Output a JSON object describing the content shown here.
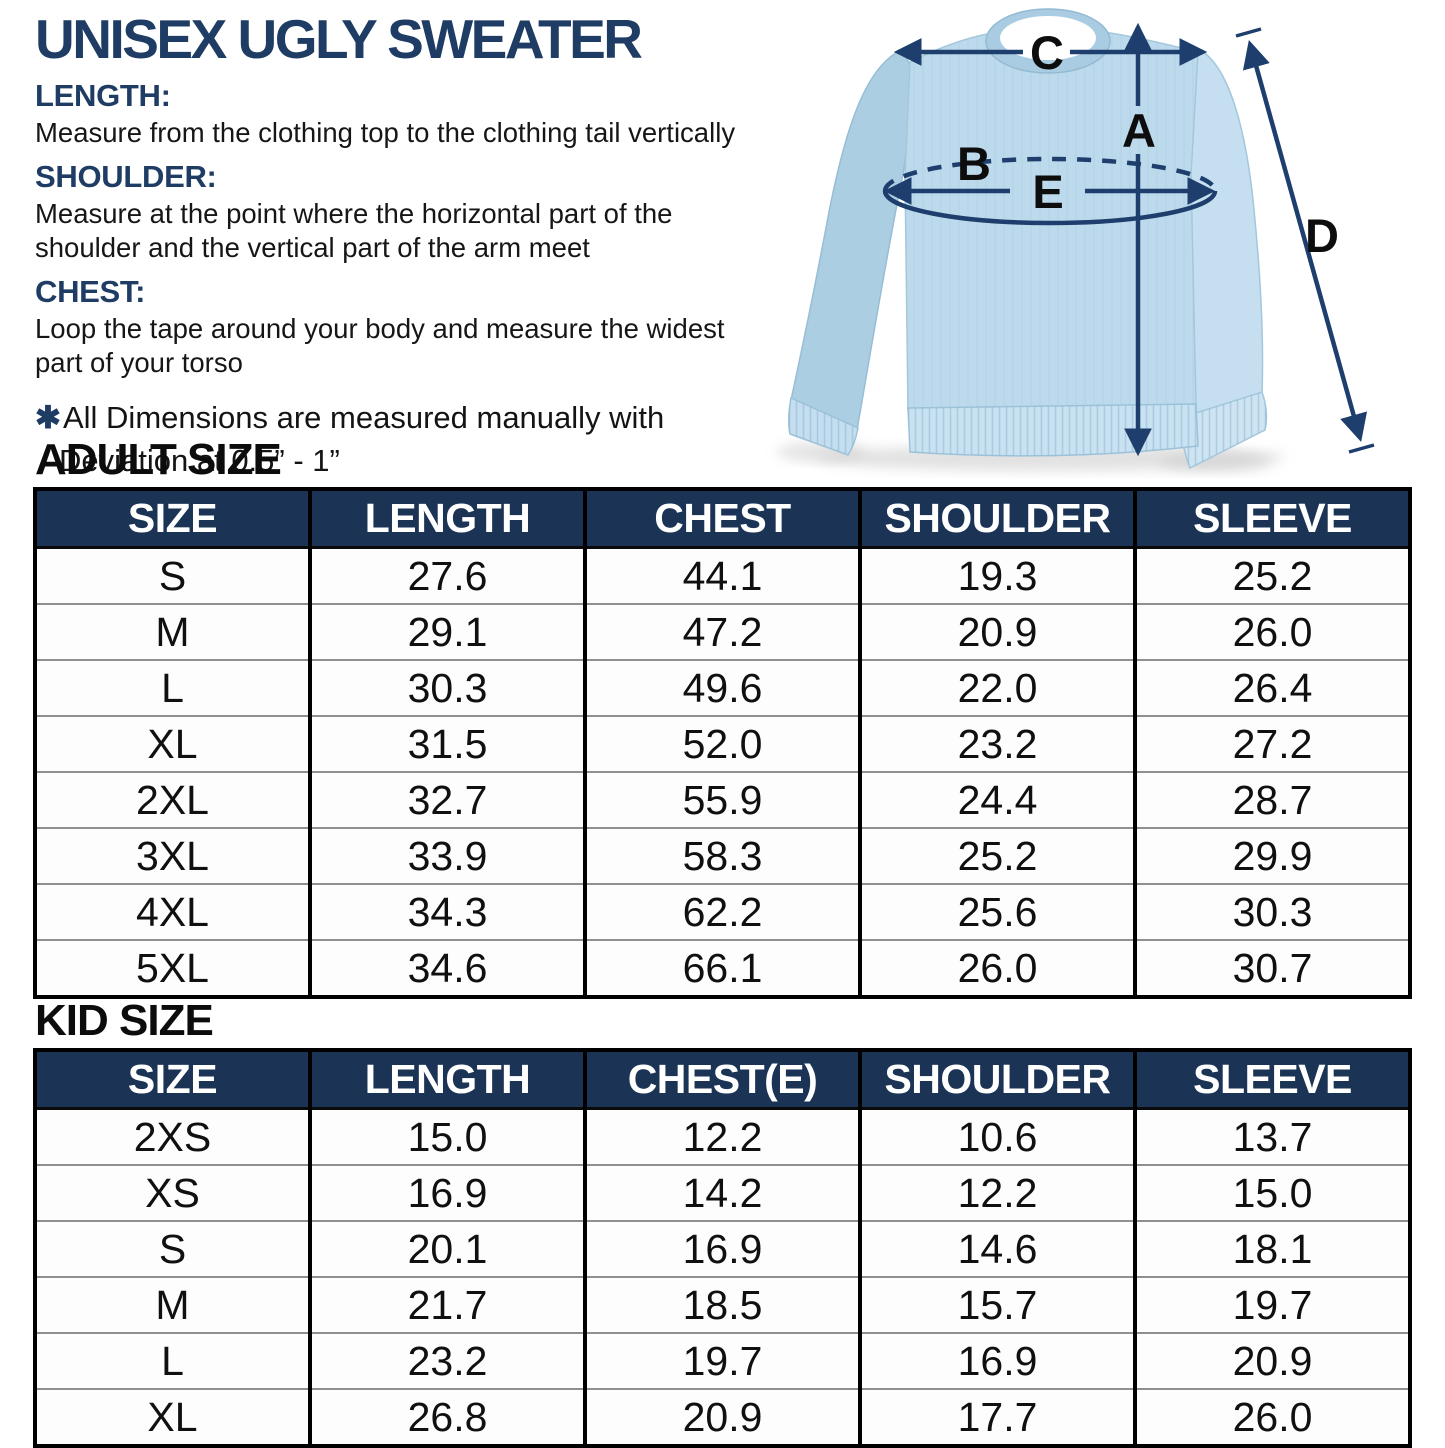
{
  "colors": {
    "navy_heading": "#1e3c64",
    "table_header_bg": "#1b3355",
    "table_header_text": "#ffffff",
    "body_text": "#161616",
    "sweater_blue": "#bddaec",
    "arrow_navy": "#1e3f6e"
  },
  "title": "UNISEX UGLY SWEATER",
  "measurement_guide": [
    {
      "label": "LENGTH:",
      "text": "Measure from the clothing top to the clothing tail vertically"
    },
    {
      "label": "SHOULDER:",
      "text": "Measure at the point where the horizontal part of the\nshoulder and the vertical part of the arm meet"
    },
    {
      "label": "CHEST:",
      "text": "Loop the tape around your body and measure the widest\npart of your torso"
    }
  ],
  "note": {
    "bullet": "✱",
    "line1": "All Dimensions are measured manually with",
    "line2": "Deviation at 0.5” - 1”"
  },
  "diagram": {
    "labels": {
      "a": "A",
      "b": "B",
      "c": "C",
      "d": "D",
      "e": "E"
    }
  },
  "adult": {
    "heading": "ADULT SIZE",
    "columns": [
      "SIZE",
      "LENGTH",
      "CHEST",
      "SHOULDER",
      "SLEEVE"
    ],
    "rows": [
      [
        "S",
        "27.6",
        "44.1",
        "19.3",
        "25.2"
      ],
      [
        "M",
        "29.1",
        "47.2",
        "20.9",
        "26.0"
      ],
      [
        "L",
        "30.3",
        "49.6",
        "22.0",
        "26.4"
      ],
      [
        "XL",
        "31.5",
        "52.0",
        "23.2",
        "27.2"
      ],
      [
        "2XL",
        "32.7",
        "55.9",
        "24.4",
        "28.7"
      ],
      [
        "3XL",
        "33.9",
        "58.3",
        "25.2",
        "29.9"
      ],
      [
        "4XL",
        "34.3",
        "62.2",
        "25.6",
        "30.3"
      ],
      [
        "5XL",
        "34.6",
        "66.1",
        "26.0",
        "30.7"
      ]
    ]
  },
  "kid": {
    "heading": "KID SIZE",
    "columns": [
      "SIZE",
      "LENGTH",
      "CHEST(E)",
      "SHOULDER",
      "SLEEVE"
    ],
    "rows": [
      [
        "2XS",
        "15.0",
        "12.2",
        "10.6",
        "13.7"
      ],
      [
        "XS",
        "16.9",
        "14.2",
        "12.2",
        "15.0"
      ],
      [
        "S",
        "20.1",
        "16.9",
        "14.6",
        "18.1"
      ],
      [
        "M",
        "21.7",
        "18.5",
        "15.7",
        "19.7"
      ],
      [
        "L",
        "23.2",
        "19.7",
        "16.9",
        "20.9"
      ],
      [
        "XL",
        "26.8",
        "20.9",
        "17.7",
        "26.0"
      ]
    ]
  }
}
